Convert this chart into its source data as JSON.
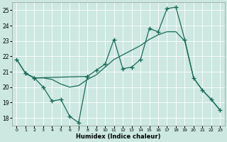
{
  "xlabel": "Humidex (Indice chaleur)",
  "bg_color": "#cce8e0",
  "line_color": "#1a6b5a",
  "grid_color": "#ffffff",
  "xlim": [
    -0.5,
    23.5
  ],
  "ylim": [
    17.5,
    25.5
  ],
  "xticks": [
    0,
    1,
    2,
    3,
    4,
    5,
    6,
    7,
    8,
    9,
    10,
    11,
    12,
    13,
    14,
    15,
    16,
    17,
    18,
    19,
    20,
    21,
    22,
    23
  ],
  "yticks": [
    18,
    19,
    20,
    21,
    22,
    23,
    24,
    25
  ],
  "line1_x": [
    0,
    1,
    2,
    3,
    4,
    5,
    6,
    7,
    8,
    9,
    10,
    11,
    12,
    13,
    14,
    15,
    16,
    17,
    18,
    19,
    20,
    21,
    22,
    23
  ],
  "line1_y": [
    21.8,
    20.9,
    20.6,
    20.6,
    20.5,
    20.2,
    20.0,
    20.1,
    20.5,
    20.8,
    21.3,
    21.8,
    22.1,
    22.4,
    22.7,
    23.1,
    23.4,
    23.6,
    23.6,
    23.0,
    20.6,
    19.8,
    19.2,
    18.5
  ],
  "line2_x": [
    0,
    1,
    2,
    8,
    9,
    10,
    11,
    12,
    13,
    14,
    15,
    16,
    17,
    18,
    19,
    20,
    21,
    22,
    23
  ],
  "line2_y": [
    21.8,
    20.9,
    20.6,
    20.7,
    21.1,
    21.5,
    23.1,
    21.2,
    21.3,
    21.8,
    23.8,
    23.6,
    25.1,
    25.2,
    23.1,
    20.6,
    19.8,
    19.2,
    18.5
  ],
  "line3_x": [
    1,
    2,
    3,
    4,
    5,
    6,
    7,
    8
  ],
  "line3_y": [
    20.9,
    20.6,
    20.0,
    19.1,
    19.2,
    18.1,
    17.7,
    20.7
  ]
}
